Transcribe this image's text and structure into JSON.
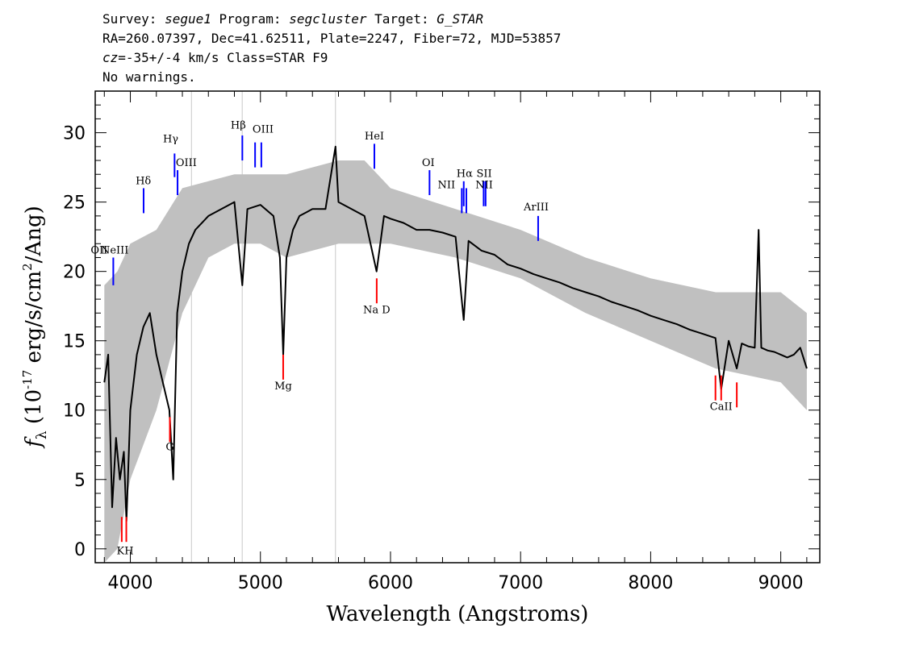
{
  "header": {
    "line1": {
      "survey_label": "Survey: ",
      "survey": "segue1",
      "program_label": " Program: ",
      "program": "segcluster",
      "target_label": " Target: ",
      "target": "G_STAR"
    },
    "line2": "RA=260.07397, Dec=41.62511, Plate=2247, Fiber=72, MJD=53857",
    "line3": {
      "cz_label": "cz",
      "cz_value": "=-35+/-4",
      "rest": " km/s Class=STAR F9"
    },
    "line4": "No warnings."
  },
  "colors": {
    "flux": "#000000",
    "error": "#c0c0c0",
    "emission_line": "#0000ff",
    "absorption_line": "#ff0000",
    "sky_line": "#c8c8c8"
  },
  "chart_data": {
    "type": "line",
    "title": "",
    "xlabel": "Wavelength (Angstroms)",
    "ylabel_parts": {
      "symbol": "f",
      "subscript": "λ",
      "prefix": " (10",
      "exponent": "-17",
      "middle": " erg/s/cm",
      "exponent2": "2",
      "suffix": "/Ang)"
    },
    "xlim": [
      3730,
      9300
    ],
    "ylim": [
      -1,
      33
    ],
    "x_ticks": [
      4000,
      5000,
      6000,
      7000,
      8000,
      9000
    ],
    "x_tick_labels": [
      "4000",
      "5000",
      "6000",
      "7000",
      "8000",
      "9000"
    ],
    "y_ticks": [
      0,
      5,
      10,
      15,
      20,
      25,
      30
    ],
    "y_tick_labels": [
      "0",
      "5",
      "10",
      "15",
      "20",
      "25",
      "30"
    ],
    "grid": false,
    "sky_lines": [
      4470,
      4860,
      5577
    ],
    "series": [
      {
        "role": "flux",
        "x": [
          3800,
          3830,
          3860,
          3890,
          3920,
          3950,
          3970,
          4000,
          4050,
          4100,
          4150,
          4200,
          4250,
          4300,
          4330,
          4360,
          4400,
          4450,
          4500,
          4600,
          4700,
          4800,
          4861,
          4900,
          5000,
          5100,
          5150,
          5175,
          5200,
          5250,
          5300,
          5400,
          5500,
          5577,
          5600,
          5700,
          5800,
          5893,
          5950,
          6000,
          6100,
          6200,
          6300,
          6400,
          6500,
          6563,
          6600,
          6700,
          6800,
          6900,
          7000,
          7100,
          7200,
          7300,
          7400,
          7500,
          7600,
          7700,
          7800,
          7900,
          8000,
          8100,
          8200,
          8300,
          8400,
          8498,
          8542,
          8600,
          8662,
          8700,
          8750,
          8800,
          8830,
          8850,
          8900,
          8950,
          9000,
          9050,
          9100,
          9150,
          9200
        ],
        "y": [
          12,
          14,
          3,
          8,
          5,
          7,
          2,
          10,
          14,
          16,
          17,
          14,
          12,
          10,
          5,
          17,
          20,
          22,
          23,
          24,
          24.5,
          25,
          19,
          24.5,
          24.8,
          24,
          21,
          14,
          21,
          23,
          24,
          24.5,
          24.5,
          29,
          25,
          24.5,
          24,
          20,
          24,
          23.8,
          23.5,
          23,
          23,
          22.8,
          22.5,
          16.5,
          22.2,
          21.5,
          21.2,
          20.5,
          20.2,
          19.8,
          19.5,
          19.2,
          18.8,
          18.5,
          18.2,
          17.8,
          17.5,
          17.2,
          16.8,
          16.5,
          16.2,
          15.8,
          15.5,
          15.2,
          11.5,
          15,
          13,
          14.8,
          14.6,
          14.5,
          23,
          14.5,
          14.3,
          14.2,
          14,
          13.8,
          14,
          14.5,
          13
        ]
      },
      {
        "role": "error",
        "x": [
          3800,
          3900,
          4000,
          4200,
          4400,
          4600,
          4800,
          5000,
          5200,
          5400,
          5600,
          5800,
          6000,
          6500,
          7000,
          7500,
          8000,
          8500,
          9000,
          9200
        ],
        "upper": [
          19,
          20,
          22,
          23,
          26,
          26.5,
          27,
          27,
          27,
          27.5,
          28,
          28,
          26,
          24.5,
          23,
          21,
          19.5,
          18.5,
          18.5,
          17
        ],
        "lower": [
          -1,
          0,
          5,
          10,
          17,
          21,
          22,
          22,
          21,
          21.5,
          22,
          22,
          22,
          21,
          19.5,
          17,
          15,
          13,
          12,
          10
        ]
      }
    ],
    "emission_lines": [
      {
        "label": "OII",
        "x": 3727,
        "y_top": 21,
        "y_bottom": 19
      },
      {
        "label": "NeIII",
        "x": 3869,
        "y_top": 21,
        "y_bottom": 19
      },
      {
        "label": "Hδ",
        "x": 4102,
        "y_top": 26,
        "y_bottom": 24.2
      },
      {
        "label": "Hγ",
        "x": 4340,
        "y_top": 28.5,
        "y_bottom": 26.8
      },
      {
        "label": "OIII",
        "x": 4363,
        "y_top": 27.3,
        "y_bottom": 25.5
      },
      {
        "label": "Hβ",
        "x": 4861,
        "y_top": 29.8,
        "y_bottom": 28
      },
      {
        "label": "OIII",
        "x": 4959,
        "y_top": 29.3,
        "y_bottom": 27.5
      },
      {
        "label": "OIII",
        "x": 5007,
        "y_top": 29.3,
        "y_bottom": 27.5
      },
      {
        "label": "HeI",
        "x": 5876,
        "y_top": 29.2,
        "y_bottom": 27.4
      },
      {
        "label": "OI",
        "x": 6300,
        "y_top": 27.3,
        "y_bottom": 25.5
      },
      {
        "label": "NII",
        "x": 6548,
        "y_top": 26,
        "y_bottom": 24.2
      },
      {
        "label": "Hα",
        "x": 6563,
        "y_top": 26.5,
        "y_bottom": 24.7
      },
      {
        "label": "NII",
        "x": 6583,
        "y_top": 26,
        "y_bottom": 24.2
      },
      {
        "label": "SII",
        "x": 6716,
        "y_top": 26.5,
        "y_bottom": 24.7
      },
      {
        "label": "SII",
        "x": 6731,
        "y_top": 26.5,
        "y_bottom": 24.7
      },
      {
        "label": "ArIII",
        "x": 7135,
        "y_top": 24,
        "y_bottom": 22.2
      }
    ],
    "absorption_lines": [
      {
        "label": "K",
        "x": 3934,
        "y_top": 2.3,
        "y_bottom": 0.5
      },
      {
        "label": "H",
        "x": 3969,
        "y_top": 2.3,
        "y_bottom": 0.5
      },
      {
        "label": "G",
        "x": 4304,
        "y_top": 9.5,
        "y_bottom": 7.7
      },
      {
        "label": "Mg",
        "x": 5175,
        "y_top": 14,
        "y_bottom": 12.2
      },
      {
        "label": "Na D",
        "x": 5894,
        "y_top": 19.5,
        "y_bottom": 17.7
      },
      {
        "label": "CaII",
        "x": 8498,
        "y_top": 12.5,
        "y_bottom": 10.7
      },
      {
        "label": "CaII",
        "x": 8542,
        "y_top": 12.5,
        "y_bottom": 10.7
      },
      {
        "label": "CaII",
        "x": 8662,
        "y_top": 12,
        "y_bottom": 10.2
      }
    ],
    "line_labels": [
      {
        "text": "OII",
        "x": 3760,
        "y": 21.3
      },
      {
        "text": "NeIII",
        "x": 3880,
        "y": 21.3
      },
      {
        "text": "Hδ",
        "x": 4100,
        "y": 26.3
      },
      {
        "text": "Hγ",
        "x": 4310,
        "y": 29.3
      },
      {
        "text": "OIII",
        "x": 4430,
        "y": 27.6
      },
      {
        "text": "Hβ",
        "x": 4830,
        "y": 30.3
      },
      {
        "text": "OIII",
        "x": 5020,
        "y": 30
      },
      {
        "text": "HeI",
        "x": 5876,
        "y": 29.5
      },
      {
        "text": "OI",
        "x": 6290,
        "y": 27.6
      },
      {
        "text": "NII",
        "x": 6430,
        "y": 26
      },
      {
        "text": "Hα",
        "x": 6570,
        "y": 26.8
      },
      {
        "text": "SII",
        "x": 6720,
        "y": 26.8
      },
      {
        "text": "NII",
        "x": 6720,
        "y": 26
      },
      {
        "text": "ArIII",
        "x": 7120,
        "y": 24.4
      },
      {
        "text": "KH",
        "x": 3960,
        "y": -0.4
      },
      {
        "text": "G",
        "x": 4304,
        "y": 7.1
      },
      {
        "text": "Mg",
        "x": 5175,
        "y": 11.5
      },
      {
        "text": "Na D",
        "x": 5894,
        "y": 17
      },
      {
        "text": "CaII",
        "x": 8542,
        "y": 10
      }
    ]
  }
}
